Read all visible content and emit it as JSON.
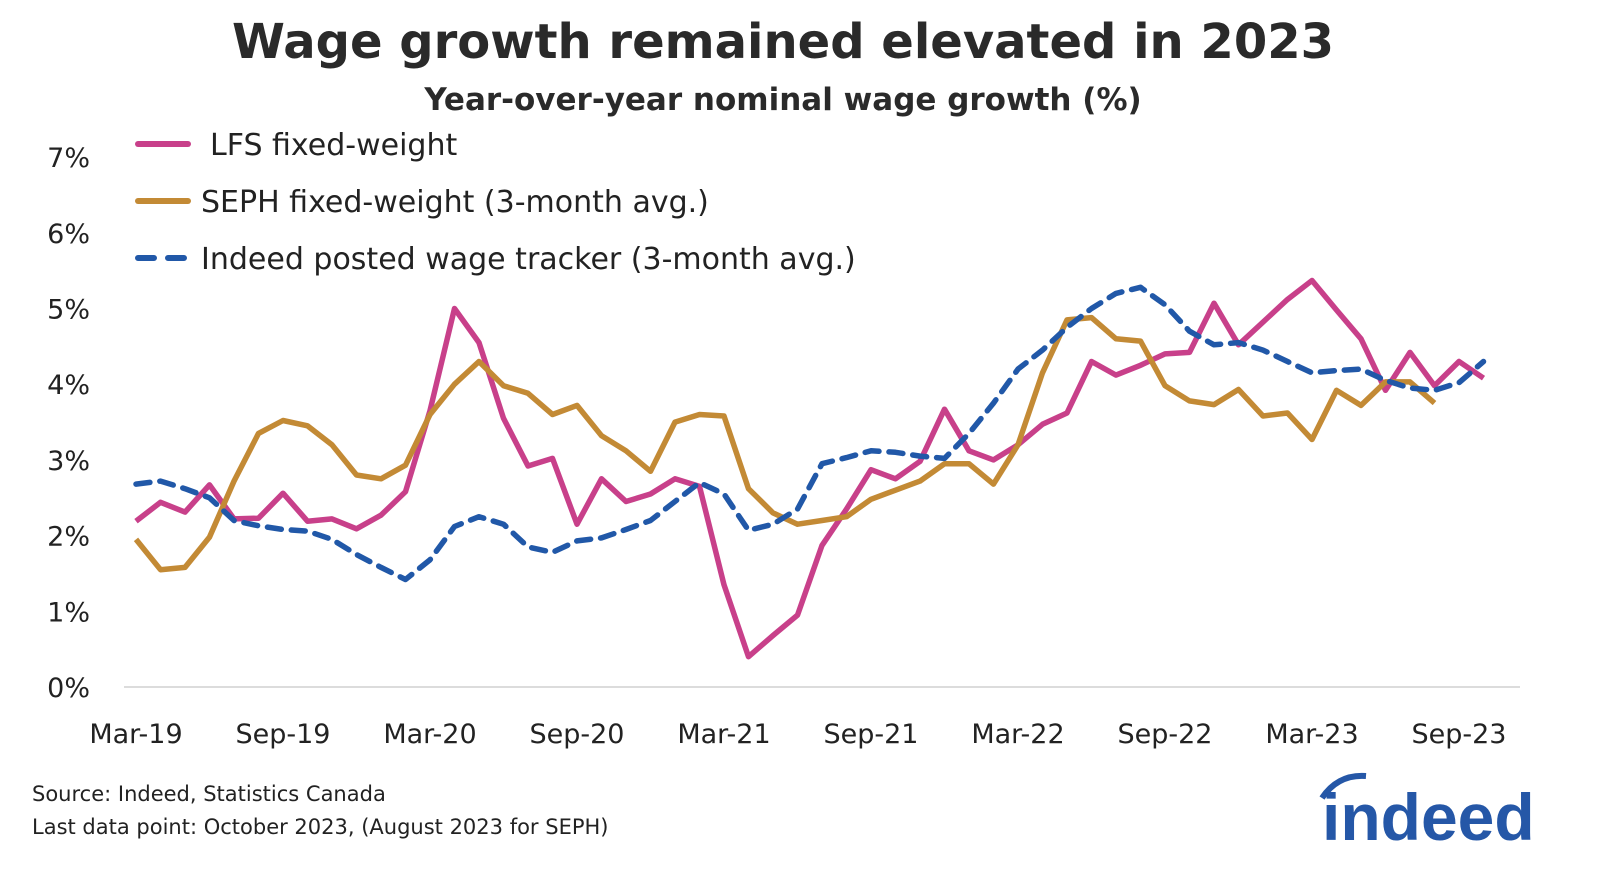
{
  "header": {
    "title": "Wage growth remained elevated in 2023",
    "subtitle": "Year-over-year nominal wage growth (%)"
  },
  "footer": {
    "source": "Source: Indeed, Statistics Canada",
    "last_point": "Last data point: October 2023, (August 2023 for SEPH)",
    "logo": "indeed"
  },
  "chart_data": {
    "type": "line",
    "title": "Wage growth remained elevated in 2023",
    "subtitle": "Year-over-year nominal wage growth (%)",
    "x_start": "Mar-19",
    "x_end": "Oct-23",
    "frequency": "monthly",
    "x_ticks": [
      "Mar-19",
      "Sep-19",
      "Mar-20",
      "Sep-20",
      "Mar-21",
      "Sep-21",
      "Mar-22",
      "Sep-22",
      "Mar-23",
      "Sep-23"
    ],
    "y_ticks": [
      "0%",
      "1%",
      "2%",
      "3%",
      "4%",
      "5%",
      "6%",
      "7%"
    ],
    "ylim": [
      0,
      7
    ],
    "grid": false,
    "legend": "top-left",
    "series": [
      {
        "name": "LFS fixed-weight",
        "color": "#c8408a",
        "dash": "solid",
        "values": [
          2.19,
          2.44,
          2.31,
          2.67,
          2.22,
          2.23,
          2.56,
          2.19,
          2.22,
          2.09,
          2.27,
          2.58,
          3.65,
          5.0,
          4.55,
          3.55,
          2.92,
          3.02,
          2.15,
          2.75,
          2.45,
          2.55,
          2.75,
          2.65,
          1.35,
          0.4,
          0.68,
          0.95,
          1.87,
          2.35,
          2.87,
          2.75,
          2.98,
          3.67,
          3.12,
          3.0,
          3.2,
          3.47,
          3.62,
          4.3,
          4.12,
          4.25,
          4.4,
          4.42,
          5.07,
          4.52,
          4.82,
          5.12,
          5.37,
          4.98,
          4.6,
          3.92,
          4.42,
          3.98,
          4.3,
          4.08
        ]
      },
      {
        "name": "SEPH fixed-weight (3-month avg.)",
        "color": "#c38a35",
        "dash": "solid",
        "values": [
          1.95,
          1.55,
          1.58,
          1.98,
          2.72,
          3.35,
          3.52,
          3.45,
          3.2,
          2.8,
          2.75,
          2.93,
          3.6,
          4.0,
          4.3,
          3.98,
          3.88,
          3.6,
          3.72,
          3.32,
          3.12,
          2.85,
          3.5,
          3.6,
          3.58,
          2.62,
          2.3,
          2.15,
          2.2,
          2.25,
          2.48,
          2.6,
          2.72,
          2.95,
          2.95,
          2.68,
          3.2,
          4.15,
          4.85,
          4.88,
          4.6,
          4.57,
          3.98,
          3.78,
          3.73,
          3.93,
          3.58,
          3.62,
          3.27,
          3.92,
          3.72,
          4.03,
          4.03,
          3.75
        ]
      },
      {
        "name": "Indeed posted wage tracker (3-month avg.)",
        "color": "#2158a8",
        "dash": "dashed",
        "values": [
          2.68,
          2.72,
          2.62,
          2.5,
          2.2,
          2.13,
          2.08,
          2.06,
          1.95,
          1.75,
          1.58,
          1.42,
          1.68,
          2.12,
          2.25,
          2.15,
          1.85,
          1.78,
          1.93,
          1.97,
          2.08,
          2.2,
          2.45,
          2.7,
          2.55,
          2.07,
          2.15,
          2.35,
          2.95,
          3.03,
          3.12,
          3.1,
          3.05,
          3.02,
          3.35,
          3.75,
          4.2,
          4.45,
          4.75,
          5.0,
          5.2,
          5.28,
          5.05,
          4.7,
          4.52,
          4.55,
          4.45,
          4.3,
          4.15,
          4.18,
          4.2,
          4.05,
          3.95,
          3.92,
          4.02,
          4.3
        ]
      }
    ]
  }
}
